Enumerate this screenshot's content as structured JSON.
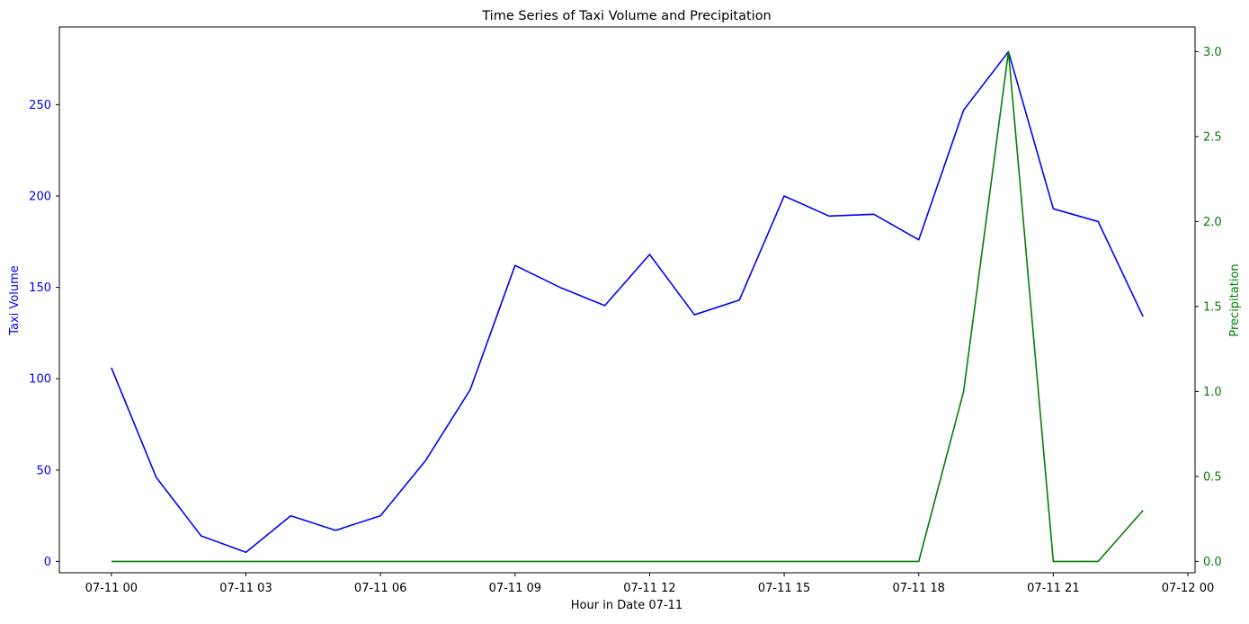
{
  "chart_data": {
    "type": "line",
    "title": "Time Series of Taxi Volume and Precipitation",
    "xlabel": "Hour in Date 07-11",
    "ylabel_left": "Taxi Volume",
    "ylabel_right": "Precipitation",
    "x": [
      "07-11 00:00",
      "07-11 01:00",
      "07-11 02:00",
      "07-11 03:00",
      "07-11 04:00",
      "07-11 05:00",
      "07-11 06:00",
      "07-11 07:00",
      "07-11 08:00",
      "07-11 09:00",
      "07-11 10:00",
      "07-11 11:00",
      "07-11 12:00",
      "07-11 13:00",
      "07-11 14:00",
      "07-11 15:00",
      "07-11 16:00",
      "07-11 17:00",
      "07-11 18:00",
      "07-11 19:00",
      "07-11 20:00",
      "07-11 21:00",
      "07-11 22:00",
      "07-11 23:00"
    ],
    "x_range": [
      "07-11 00:00",
      "07-12 00:00"
    ],
    "x_ticks": [
      "07-11 00",
      "07-11 03",
      "07-11 06",
      "07-11 09",
      "07-11 12",
      "07-11 15",
      "07-11 18",
      "07-11 21",
      "07-12 00"
    ],
    "series": [
      {
        "axis": "left",
        "color": "#0000ff",
        "values": [
          106,
          46,
          14,
          5,
          25,
          17,
          25,
          55,
          94,
          162,
          150,
          140,
          168,
          135,
          143,
          200,
          189,
          190,
          176,
          247,
          279,
          193,
          186,
          134
        ]
      },
      {
        "axis": "right",
        "color": "#008000",
        "values": [
          0,
          0,
          0,
          0,
          0,
          0,
          0,
          0,
          0,
          0,
          0,
          0,
          0,
          0,
          0,
          0,
          0,
          0,
          0,
          1.0,
          3.0,
          0,
          0,
          0.3
        ]
      }
    ],
    "yleft_ticks": [
      0,
      50,
      100,
      150,
      200,
      250
    ],
    "yright_ticks": [
      "0.0",
      "0.5",
      "1.0",
      "1.5",
      "2.0",
      "2.5",
      "3.0"
    ],
    "yleft_color": "#0000ff",
    "yright_color": "#008000",
    "grid": false
  }
}
